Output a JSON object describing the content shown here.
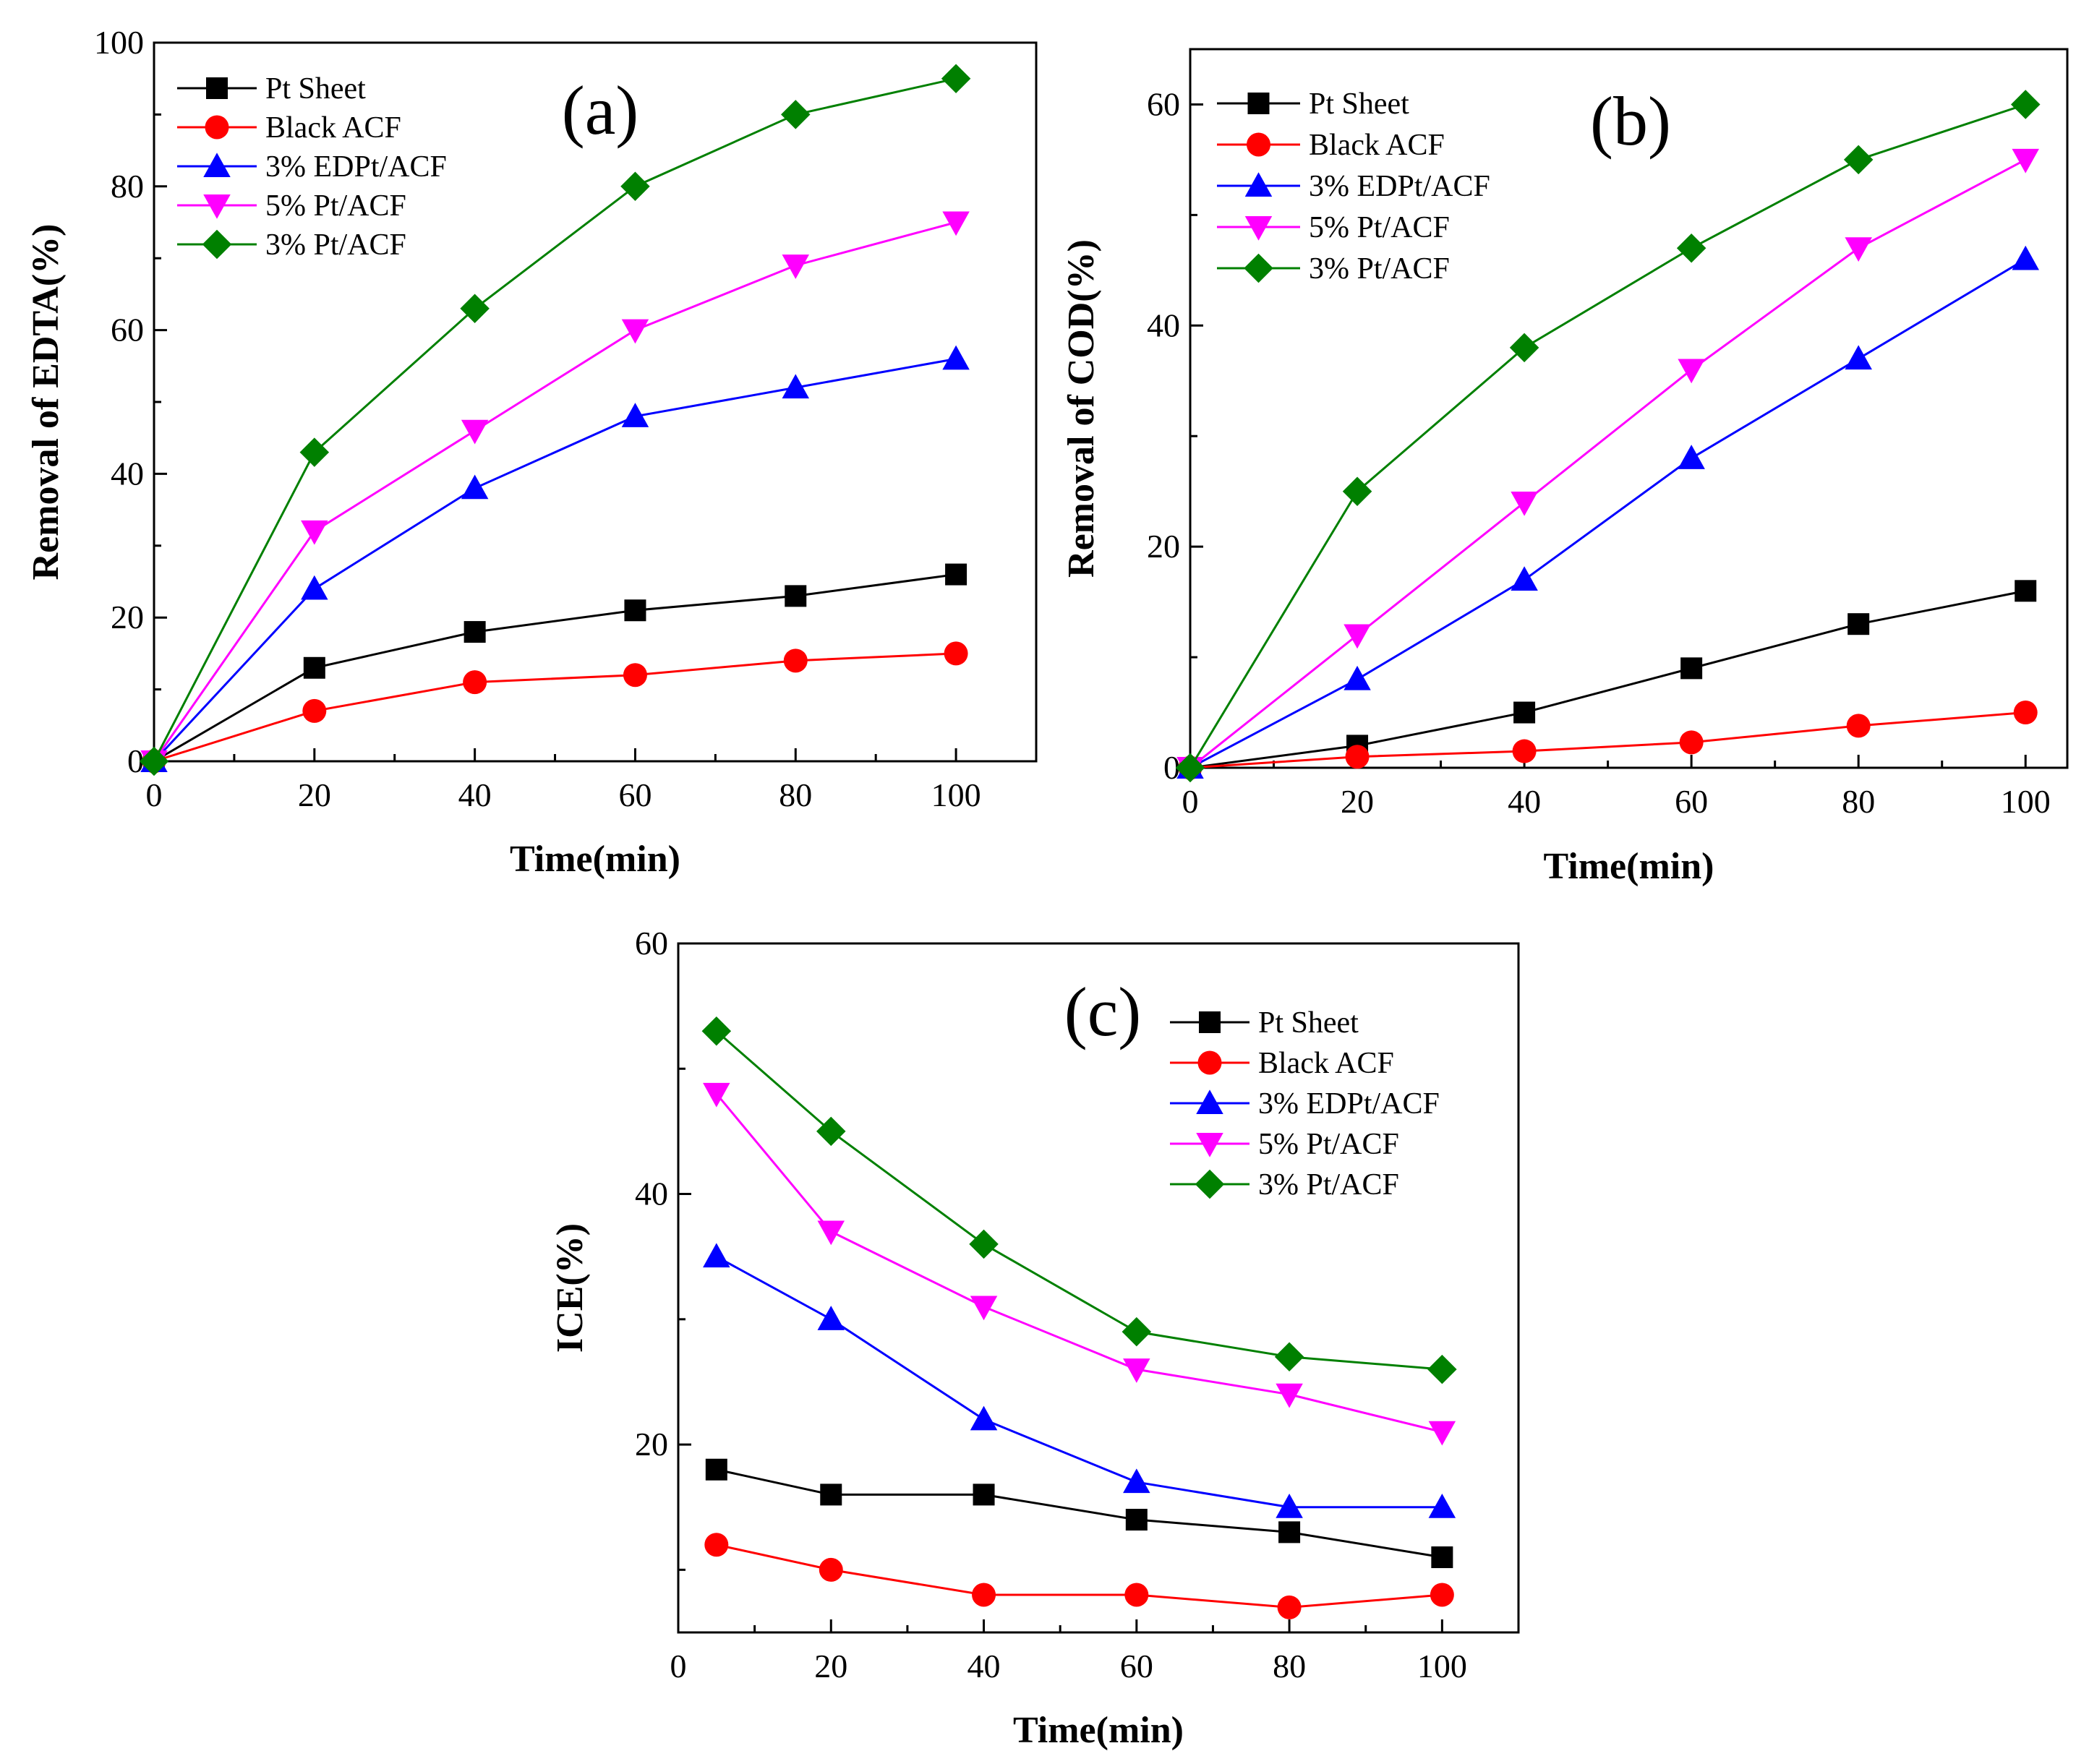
{
  "series_style": [
    {
      "name": "Pt Sheet",
      "color": "#000000",
      "marker": "square"
    },
    {
      "name": "Black ACF",
      "color": "#ff0000",
      "marker": "circle"
    },
    {
      "name": "3% EDPt/ACF",
      "color": "#0000ff",
      "marker": "triangle-up"
    },
    {
      "name": "5% Pt/ACF",
      "color": "#ff00ff",
      "marker": "triangle-down"
    },
    {
      "name": "3% Pt/ACF",
      "color": "#008000",
      "marker": "diamond"
    }
  ],
  "chart_data": [
    {
      "type": "line",
      "panel_label": "(a)",
      "xlabel": "Time(min)",
      "ylabel": "Removal of EDTA(%)",
      "xlim": [
        0,
        110
      ],
      "ylim": [
        0,
        100
      ],
      "xticks": [
        0,
        20,
        40,
        60,
        80,
        100
      ],
      "yticks": [
        0,
        20,
        40,
        60,
        80,
        100
      ],
      "legend": "top-left",
      "x": [
        0,
        20,
        40,
        60,
        80,
        100
      ],
      "series": [
        {
          "name": "Pt Sheet",
          "values": [
            0,
            13,
            18,
            21,
            23,
            26
          ]
        },
        {
          "name": "Black ACF",
          "values": [
            0,
            7,
            11,
            12,
            14,
            15
          ]
        },
        {
          "name": "3% EDPt/ACF",
          "values": [
            0,
            24,
            38,
            48,
            52,
            56
          ]
        },
        {
          "name": "5% Pt/ACF",
          "values": [
            0,
            32,
            46,
            60,
            69,
            75
          ]
        },
        {
          "name": "3% Pt/ACF",
          "values": [
            0,
            43,
            63,
            80,
            90,
            95
          ]
        }
      ]
    },
    {
      "type": "line",
      "panel_label": "(b)",
      "xlabel": "Time(min)",
      "ylabel": "Removal of COD(%)",
      "xlim": [
        0,
        105
      ],
      "ylim": [
        0,
        65
      ],
      "xticks": [
        0,
        20,
        40,
        60,
        80,
        100
      ],
      "yticks": [
        0,
        20,
        40,
        60
      ],
      "legend": "top-left",
      "x": [
        0,
        20,
        40,
        60,
        80,
        100
      ],
      "series": [
        {
          "name": "Pt Sheet",
          "values": [
            0,
            2,
            5,
            9,
            13,
            16
          ]
        },
        {
          "name": "Black ACF",
          "values": [
            0,
            1,
            1.5,
            2.3,
            3.8,
            5
          ]
        },
        {
          "name": "3% EDPt/ACF",
          "values": [
            0,
            8,
            17,
            28,
            37,
            46
          ]
        },
        {
          "name": "5% Pt/ACF",
          "values": [
            0,
            12,
            24,
            36,
            47,
            55
          ]
        },
        {
          "name": "3% Pt/ACF",
          "values": [
            0,
            25,
            38,
            47,
            55,
            60
          ]
        }
      ]
    },
    {
      "type": "line",
      "panel_label": "(c)",
      "xlabel": "Time(min)",
      "ylabel": "ICE(%)",
      "xlim": [
        0,
        110
      ],
      "ylim": [
        5,
        60
      ],
      "xticks": [
        0,
        20,
        40,
        60,
        80,
        100
      ],
      "yticks": [
        20,
        40,
        60
      ],
      "legend": "top-right",
      "x": [
        5,
        20,
        40,
        60,
        80,
        100
      ],
      "series": [
        {
          "name": "Pt Sheet",
          "values": [
            18,
            16,
            16,
            14,
            13,
            11
          ]
        },
        {
          "name": "Black ACF",
          "values": [
            12,
            10,
            8,
            8,
            7,
            8
          ]
        },
        {
          "name": "3% EDPt/ACF",
          "values": [
            35,
            30,
            22,
            17,
            15,
            15
          ]
        },
        {
          "name": "5% Pt/ACF",
          "values": [
            48,
            37,
            31,
            26,
            24,
            21
          ]
        },
        {
          "name": "3% Pt/ACF",
          "values": [
            53,
            45,
            36,
            29,
            27,
            26
          ]
        }
      ]
    }
  ]
}
